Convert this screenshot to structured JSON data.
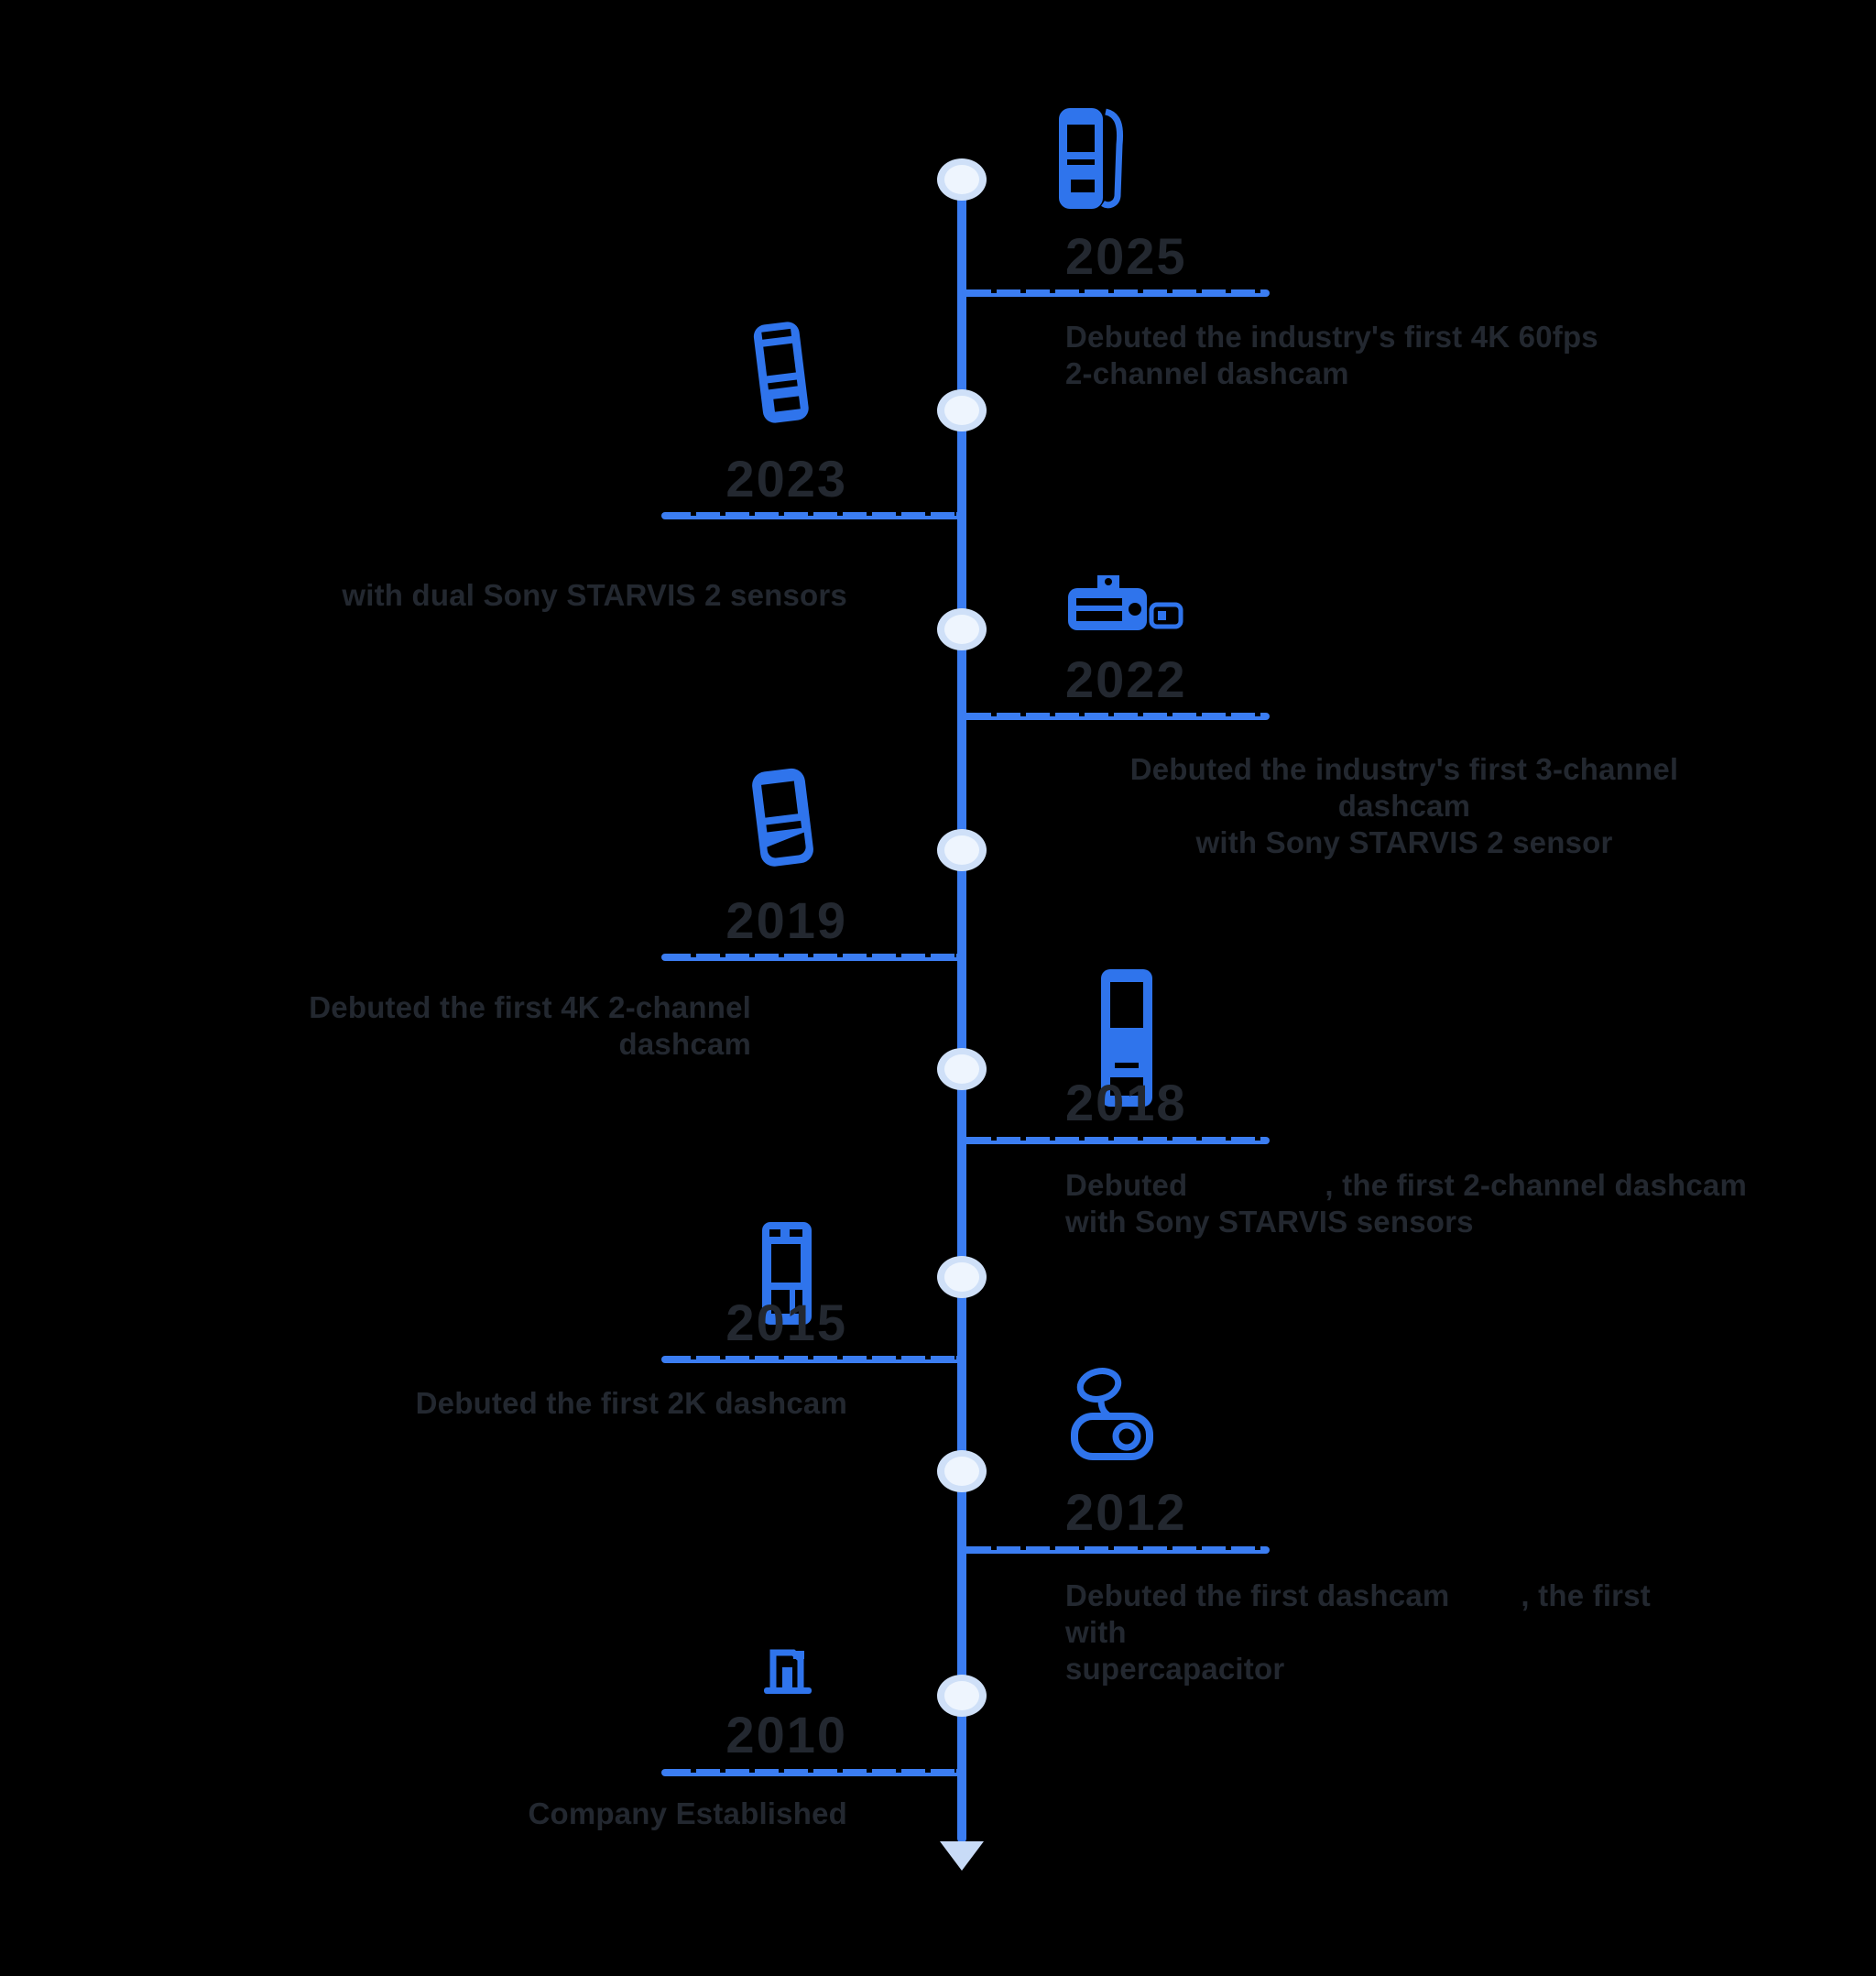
{
  "page": {
    "background": "#000000"
  },
  "timeline": {
    "accent_blue": "#3b7df2",
    "icon_blue": "#2f74ec",
    "node_ring_color": "#cfe0f8",
    "node_fill_color": "#eef5fe",
    "arrow_color": "#c8dbf7",
    "text_color": "#232830",
    "direction": "down-arrow at bottom",
    "items": [
      {
        "year": "2025",
        "side": "right",
        "icon": "dashcam-4k-60fps-icon",
        "desc_lines": [
          [
            {
              "text": "Debuted the industry's first 4K 60fps"
            }
          ],
          [
            {
              "text": "2-channel dashcam"
            }
          ]
        ]
      },
      {
        "year": "2023",
        "side": "left",
        "icon": "dashcam-dual-sensor-icon",
        "desc_lines": [
          [
            {
              "text": "with dual Sony STARVIS 2 sensors"
            }
          ]
        ]
      },
      {
        "year": "2022",
        "side": "right",
        "icon": "dashcam-3-channel-icon",
        "desc_lines": [
          [
            {
              "text": "Debuted the industry's first 3-channel dashcam"
            }
          ],
          [
            {
              "text": "with Sony STARVIS 2 sensor"
            }
          ]
        ]
      },
      {
        "year": "2019",
        "side": "left",
        "icon": "dashcam-4k-2channel-icon",
        "desc_lines": [
          [
            {
              "text": "Debuted the first 4K 2-channel dashcam"
            }
          ]
        ]
      },
      {
        "year": "2018",
        "side": "right",
        "icon": "dashcam-front-screen-icon",
        "desc_lines": [
          [
            {
              "text": "Debuted"
            },
            {
              "gap": 150
            },
            {
              "text": ", the first 2-channel dashcam"
            }
          ],
          [
            {
              "text": "with Sony STARVIS sensors"
            }
          ]
        ]
      },
      {
        "year": "2015",
        "side": "left",
        "icon": "dashcam-2k-icon",
        "desc_lines": [
          [
            {
              "text": "Debuted the first 2K dashcam"
            }
          ]
        ]
      },
      {
        "year": "2012",
        "side": "right",
        "icon": "dashcam-supercapacitor-icon",
        "desc_lines": [
          [
            {
              "text": "Debuted the first dashcam"
            },
            {
              "gap": 78
            },
            {
              "text": ", the first"
            },
            {
              "gap": 122
            },
            {
              "text": "with"
            }
          ],
          [
            {
              "text": "supercapacitor"
            }
          ]
        ]
      },
      {
        "year": "2010",
        "side": "left",
        "icon": "company-established-icon",
        "desc_lines": [
          [
            {
              "text": "Company Established"
            }
          ]
        ]
      }
    ]
  }
}
